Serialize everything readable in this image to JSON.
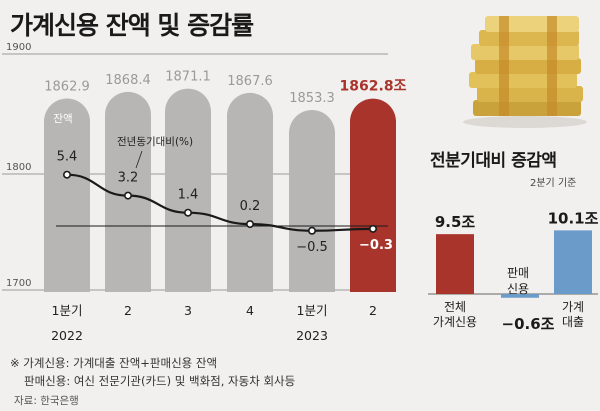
{
  "title": "가계신용 잔액 및 증감률",
  "chart_data": [
    {
      "type": "bar",
      "title": "",
      "ylim": [
        1700,
        1900
      ],
      "yticks": [
        "1900",
        "1800",
        "1700"
      ],
      "categories": [
        {
          "top": "1분기",
          "bottom": "2022"
        },
        {
          "top": "2",
          "bottom": ""
        },
        {
          "top": "3",
          "bottom": ""
        },
        {
          "top": "4",
          "bottom": ""
        },
        {
          "top": "1분기",
          "bottom": "2023"
        },
        {
          "top": "2",
          "bottom": ""
        }
      ],
      "series": [
        {
          "name": "잔액",
          "values": [
            1862.9,
            1868.4,
            1871.1,
            1867.6,
            1853.3,
            1862.8
          ],
          "labels": [
            "1862.9",
            "1868.4",
            "1871.1",
            "1867.6",
            "1853.3",
            "1862.8조"
          ],
          "color": "#b7b6b5",
          "highlight_color": "#a8342c"
        },
        {
          "name": "전년동기대비(%)",
          "type": "line",
          "values": [
            5.4,
            3.2,
            1.4,
            0.2,
            -0.5,
            -0.3
          ],
          "labels": [
            "5.4",
            "3.2",
            "1.4",
            "0.2",
            "−0.5",
            "−0.3"
          ],
          "color": "#1a1a1a"
        }
      ]
    },
    {
      "type": "bar",
      "title": "전분기대비 증감액",
      "subtitle": "2분기 기준",
      "categories": [
        "전체 가계신용",
        "판매 신용",
        "가계 대출"
      ],
      "category_lines": [
        [
          "전체",
          "가계신용"
        ],
        [
          "판매",
          "신용"
        ],
        [
          "가계",
          "대출"
        ]
      ],
      "values": [
        9.5,
        -0.6,
        10.1
      ],
      "labels": [
        "9.5조",
        "−0.6조",
        "10.1조"
      ],
      "colors": [
        "#a8342c",
        "#6a9bc9",
        "#6a9bc9"
      ]
    }
  ],
  "note": {
    "line1": "※ 가계신용: 가계대출 잔액+판매신용 잔액",
    "line2": "판매신용: 여신 전문기관(카드) 및 백화점, 자동차 회사등"
  },
  "source": "자료: 한국은행",
  "logo_icon": "money-stack-icon",
  "colors": {
    "background": "#f1f0ef",
    "grid": "#9a9a9a",
    "highlight": "#a8342c",
    "blue": "#6a9bc9",
    "bar": "#b7b6b5"
  }
}
